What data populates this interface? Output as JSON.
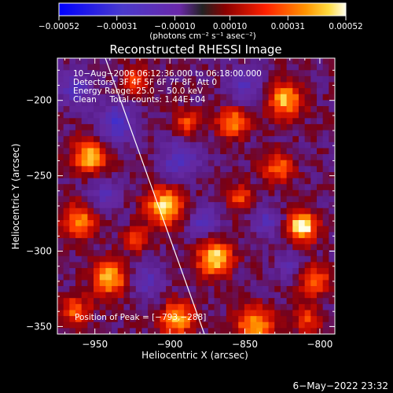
{
  "chart_data": {
    "type": "heatmap",
    "title": "Reconstructed RHESSI Image",
    "xlabel": "Heliocentric X (arcsec)",
    "ylabel": "Heliocentric Y (arcsec)",
    "xlim": [
      -975,
      -790
    ],
    "ylim": [
      -355,
      -172
    ],
    "x_ticks": [
      -950,
      -900,
      -850,
      -800
    ],
    "x_tick_labels": [
      "−950",
      "−900",
      "−850",
      "−800"
    ],
    "y_ticks": [
      -350,
      -300,
      -250,
      -200
    ],
    "y_tick_labels": [
      "−350",
      "−300",
      "−250",
      "−200"
    ],
    "colorbar": {
      "range": [
        -0.00052,
        0.00052
      ],
      "ticks": [
        -0.00052,
        -0.00031,
        -0.0001,
        0.0001,
        0.00031,
        0.00052
      ],
      "tick_labels": [
        "−0.00052",
        "−0.00031",
        "−0.00010",
        "0.00010",
        "0.00031",
        "0.00052"
      ],
      "unit_label": "(photons cm⁻² s⁻¹ asec⁻²)"
    },
    "annotations": [
      "10−Aug−2006 06:12:36.000 to 06:18:00.000",
      "Detectors: 3F 4F 5F 6F 7F 8F, Att 0",
      "Energy Range: 25.0 − 50.0 keV",
      "Clean     Total counts: 1.44E+04"
    ],
    "peak_label": "Position of Peak = [−793,−288]",
    "peak": [
      -793,
      -288
    ],
    "limb_line": [
      [
        -943,
        -172
      ],
      [
        -877,
        -355
      ]
    ],
    "grid_dims": [
      46,
      46
    ],
    "hotspots": [
      [
        -812,
        -284,
        1.0,
        7
      ],
      [
        -870,
        -305,
        0.9,
        8
      ],
      [
        -903,
        -270,
        0.85,
        9
      ],
      [
        -953,
        -237,
        0.8,
        8
      ],
      [
        -940,
        -318,
        0.8,
        8
      ],
      [
        -823,
        -200,
        0.78,
        8
      ],
      [
        -843,
        -350,
        0.75,
        9
      ],
      [
        -895,
        -345,
        0.75,
        8
      ],
      [
        -858,
        -215,
        0.7,
        7
      ],
      [
        -960,
        -280,
        0.65,
        8
      ],
      [
        -888,
        -215,
        0.55,
        6
      ],
      [
        -803,
        -320,
        0.6,
        7
      ],
      [
        -853,
        -265,
        0.5,
        6
      ],
      [
        -922,
        -187,
        0.55,
        6
      ],
      [
        -828,
        -245,
        0.6,
        7
      ],
      [
        -963,
        -340,
        0.55,
        7
      ],
      [
        -808,
        -345,
        0.5,
        6
      ],
      [
        -922,
        -292,
        0.45,
        6
      ],
      [
        -935,
        -215,
        -0.55,
        9
      ],
      [
        -893,
        -240,
        -0.5,
        9
      ],
      [
        -850,
        -190,
        -0.45,
        8
      ],
      [
        -963,
        -192,
        -0.45,
        8
      ],
      [
        -835,
        -280,
        -0.4,
        7
      ],
      [
        -915,
        -320,
        -0.4,
        8
      ],
      [
        -878,
        -280,
        -0.5,
        7
      ],
      [
        -820,
        -310,
        -0.35,
        6
      ],
      [
        -943,
        -262,
        -0.4,
        7
      ]
    ],
    "footer_date": "6−May−2022 23:32"
  }
}
